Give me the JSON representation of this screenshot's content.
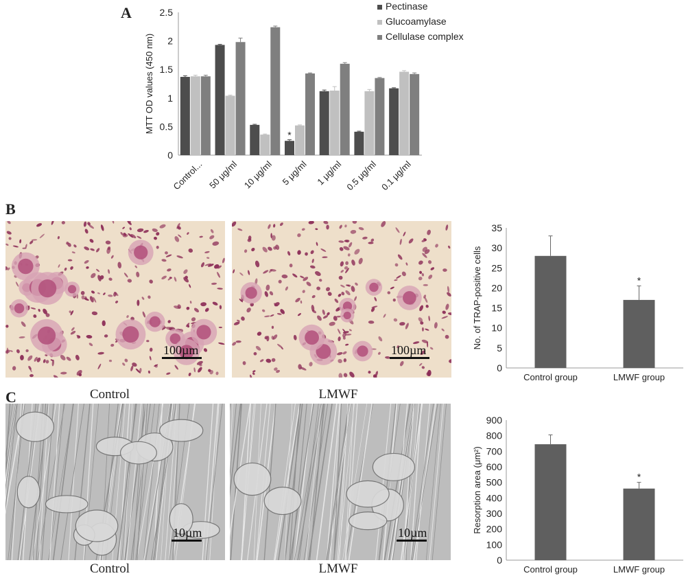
{
  "panels": {
    "a": "A",
    "b": "B",
    "c": "C"
  },
  "photo_captions": {
    "c_top_left": "Control",
    "c_top_right": "LMWF",
    "c_bottom_left": "Control",
    "c_bottom_right": "LMWF"
  },
  "scale_bars": {
    "b_left": "100µm",
    "b_right": "100µm",
    "c_left": "10µm",
    "c_right": "10µm"
  },
  "colors": {
    "pectinase": "#4d4d4d",
    "glucoamylase": "#c0c0c0",
    "cellulase": "#7f7f7f",
    "bar_single": "#5f5f5f",
    "trap_stain_bg": "#eedfca",
    "trap_stain_cell": "#8a2a55",
    "sem_bg": "#bdbdbd"
  },
  "chart_data": [
    {
      "id": "A",
      "type": "bar",
      "title": "",
      "xlabel": "",
      "ylabel": "MTT OD values (450 nm)",
      "ylim": [
        0,
        2.5
      ],
      "yticks": [
        "0",
        "0.5",
        "1",
        "1.5",
        "2",
        "2.5"
      ],
      "categories": [
        "Control...",
        "50 μg/ml",
        "10 μg/ml",
        "5 μg/ml",
        "1 μg/ml",
        "0.5 μg/ml",
        "0.1 μg/ml"
      ],
      "series": [
        {
          "name": "Pectinase",
          "values": [
            1.37,
            1.93,
            0.53,
            0.25,
            1.12,
            0.41,
            1.17
          ],
          "errors": [
            0.02,
            0.01,
            0.01,
            0.02,
            0.02,
            0.01,
            0.01
          ]
        },
        {
          "name": "Glucoamylase",
          "values": [
            1.38,
            1.04,
            0.36,
            0.52,
            1.13,
            1.12,
            1.46
          ],
          "errors": [
            0.02,
            0.01,
            0.01,
            0.01,
            0.07,
            0.03,
            0.02
          ]
        },
        {
          "name": "Cellulase complex",
          "values": [
            1.38,
            1.98,
            2.24,
            1.43,
            1.6,
            1.35,
            1.42
          ],
          "errors": [
            0.02,
            0.07,
            0.02,
            0.01,
            0.02,
            0.01,
            0.02
          ]
        }
      ],
      "significance": [
        {
          "series": "Pectinase",
          "category": "5 μg/ml",
          "label": "*"
        }
      ],
      "legend": "top-right",
      "grid": false
    },
    {
      "id": "B",
      "type": "bar",
      "title": "",
      "xlabel": "",
      "ylabel": "No. of TRAP-positive cells",
      "ylim": [
        0,
        35
      ],
      "yticks": [
        "0",
        "5",
        "10",
        "15",
        "20",
        "25",
        "30",
        "35"
      ],
      "categories": [
        "Control group",
        "LMWF group"
      ],
      "values": [
        28,
        17
      ],
      "errors": [
        5,
        3.5
      ],
      "significance": [
        {
          "category": "LMWF group",
          "label": "*"
        }
      ],
      "grid": false
    },
    {
      "id": "C",
      "type": "bar",
      "title": "",
      "xlabel": "",
      "ylabel": "Resorption area (μm²)",
      "ylim": [
        0,
        900
      ],
      "yticks": [
        "0",
        "100",
        "200",
        "300",
        "400",
        "500",
        "600",
        "700",
        "800",
        "900"
      ],
      "categories": [
        "Control group",
        "LMWF group"
      ],
      "values": [
        745,
        460
      ],
      "errors": [
        60,
        40
      ],
      "significance": [
        {
          "category": "LMWF group",
          "label": "*"
        }
      ],
      "grid": false
    }
  ]
}
